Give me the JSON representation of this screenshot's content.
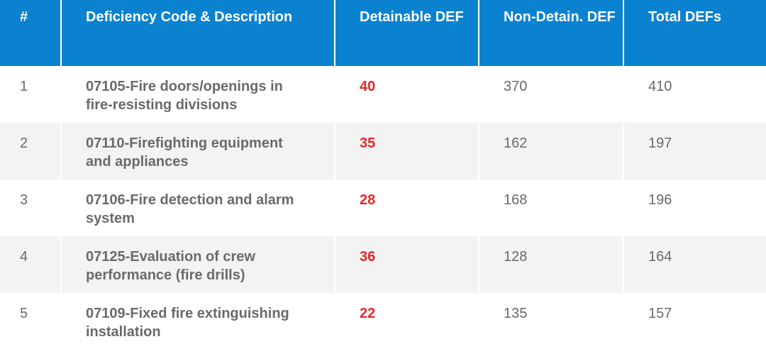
{
  "headers": {
    "num": "#",
    "description": "Deficiency Code & Description",
    "detainable": "Detainable DEF",
    "non_detainable": "Non-Detain. DEF",
    "total": "Total DEFs"
  },
  "colors": {
    "header_background": "#0a82cf",
    "header_text": "#ffffff",
    "detainable_value": "#e8262b",
    "body_text": "#6a6a6a",
    "stripe": "#f3f3f3"
  },
  "rows": [
    {
      "num": "1",
      "description": "07105-Fire doors/openings in fire-resisting divisions",
      "detainable": "40",
      "non_detainable": "370",
      "total": "410"
    },
    {
      "num": "2",
      "description": "07110-Firefighting equipment and appliances",
      "detainable": "35",
      "non_detainable": "162",
      "total": "197"
    },
    {
      "num": "3",
      "description": "07106-Fire detection and alarm system",
      "detainable": "28",
      "non_detainable": "168",
      "total": "196"
    },
    {
      "num": "4",
      "description": "07125-Evaluation of crew performance (fire drills)",
      "detainable": "36",
      "non_detainable": "128",
      "total": "164"
    },
    {
      "num": "5",
      "description": "07109-Fixed fire extinguishing installation",
      "detainable": "22",
      "non_detainable": "135",
      "total": "157"
    }
  ]
}
